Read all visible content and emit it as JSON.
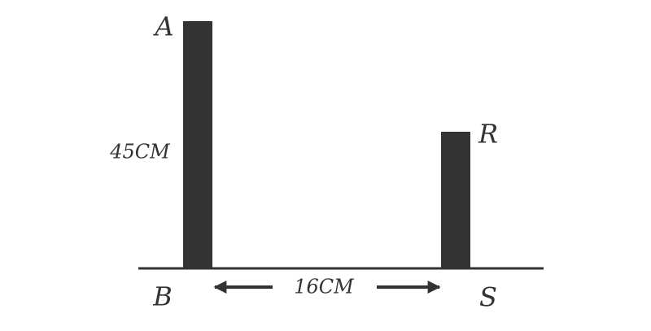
{
  "points": [
    {
      "label": "A"
    },
    {
      "label": "B"
    },
    {
      "label": "R"
    },
    {
      "label": "S"
    }
  ],
  "measurements": [
    {
      "label": "45CM"
    },
    {
      "label": "16CM"
    }
  ]
}
